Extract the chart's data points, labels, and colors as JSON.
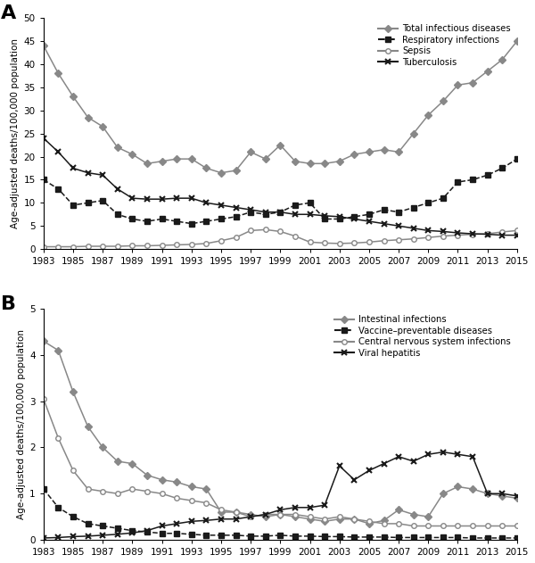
{
  "years": [
    1983,
    1984,
    1985,
    1986,
    1987,
    1988,
    1989,
    1990,
    1991,
    1992,
    1993,
    1994,
    1995,
    1996,
    1997,
    1998,
    1999,
    2000,
    2001,
    2002,
    2003,
    2004,
    2005,
    2006,
    2007,
    2008,
    2009,
    2010,
    2011,
    2012,
    2013,
    2014,
    2015
  ],
  "panelA": {
    "total": [
      44,
      38,
      33,
      28.5,
      26.5,
      22,
      20.5,
      18.5,
      19,
      19.5,
      19.5,
      17.5,
      16.5,
      17,
      21,
      19.5,
      22.5,
      19,
      18.5,
      18.5,
      19,
      20.5,
      21,
      21.5,
      21,
      25,
      29,
      32,
      35.5,
      36,
      38.5,
      41,
      45
    ],
    "respiratory": [
      15,
      13,
      9.5,
      10,
      10.5,
      7.5,
      6.5,
      6,
      6.5,
      6,
      5.5,
      6,
      6.5,
      7,
      8,
      7.5,
      8,
      9.5,
      10,
      6.5,
      6.5,
      7,
      7.5,
      8.5,
      8,
      9,
      10,
      11,
      14.5,
      15,
      16,
      17.5,
      19.5
    ],
    "sepsis": [
      0.5,
      0.5,
      0.5,
      0.6,
      0.6,
      0.6,
      0.7,
      0.7,
      0.8,
      0.9,
      1.0,
      1.2,
      1.8,
      2.5,
      4.0,
      4.2,
      3.8,
      2.8,
      1.5,
      1.3,
      1.2,
      1.3,
      1.5,
      1.8,
      2.0,
      2.2,
      2.5,
      2.8,
      3.0,
      3.2,
      3.3,
      3.7,
      4.0
    ],
    "tuberculosis": [
      24,
      21,
      17.5,
      16.5,
      16,
      13,
      11,
      10.8,
      10.8,
      11,
      11,
      10,
      9.5,
      9,
      8.5,
      8,
      8,
      7.5,
      7.5,
      7.2,
      7,
      6.5,
      6,
      5.5,
      5,
      4.5,
      4,
      3.8,
      3.5,
      3.3,
      3.2,
      3.0,
      3.0
    ]
  },
  "panelB": {
    "intestinal": [
      4.3,
      4.1,
      3.2,
      2.45,
      2.0,
      1.7,
      1.65,
      1.4,
      1.3,
      1.25,
      1.15,
      1.1,
      0.6,
      0.6,
      0.55,
      0.5,
      0.55,
      0.5,
      0.45,
      0.4,
      0.45,
      0.45,
      0.35,
      0.42,
      0.65,
      0.55,
      0.5,
      1.0,
      1.15,
      1.1,
      1.0,
      0.95,
      0.9
    ],
    "vaccine": [
      1.1,
      0.7,
      0.5,
      0.35,
      0.3,
      0.25,
      0.2,
      0.17,
      0.14,
      0.14,
      0.12,
      0.1,
      0.1,
      0.1,
      0.08,
      0.08,
      0.1,
      0.08,
      0.08,
      0.07,
      0.07,
      0.06,
      0.06,
      0.06,
      0.05,
      0.05,
      0.05,
      0.05,
      0.05,
      0.04,
      0.04,
      0.04,
      0.04
    ],
    "cns": [
      3.05,
      2.2,
      1.5,
      1.1,
      1.05,
      1.0,
      1.1,
      1.05,
      1.0,
      0.9,
      0.85,
      0.8,
      0.65,
      0.6,
      0.5,
      0.55,
      0.55,
      0.55,
      0.5,
      0.45,
      0.5,
      0.45,
      0.4,
      0.35,
      0.35,
      0.3,
      0.3,
      0.3,
      0.3,
      0.3,
      0.3,
      0.3,
      0.3
    ],
    "hepatitis": [
      0.04,
      0.05,
      0.07,
      0.08,
      0.1,
      0.12,
      0.15,
      0.2,
      0.3,
      0.35,
      0.4,
      0.42,
      0.45,
      0.45,
      0.5,
      0.55,
      0.65,
      0.7,
      0.7,
      0.75,
      1.6,
      1.3,
      1.5,
      1.65,
      1.8,
      1.7,
      1.85,
      1.9,
      1.85,
      1.8,
      1.0,
      1.0,
      0.95
    ]
  },
  "gray": "#888888",
  "black": "#1a1a1a",
  "panelA_ylabel": "Age-adjusted deaths/100,000 population",
  "panelB_ylabel": "Age-adjusted deaths/100,000 population",
  "panelA_ylim": [
    0,
    50
  ],
  "panelB_ylim": [
    0,
    5
  ],
  "panelA_yticks": [
    0,
    5,
    10,
    15,
    20,
    25,
    30,
    35,
    40,
    45,
    50
  ],
  "panelB_yticks": [
    0,
    1,
    2,
    3,
    4,
    5
  ],
  "xticks": [
    1983,
    1985,
    1987,
    1989,
    1991,
    1993,
    1995,
    1997,
    1999,
    2001,
    2003,
    2005,
    2007,
    2009,
    2011,
    2013,
    2015
  ],
  "panelA_legends": [
    "Total infectious diseases",
    "Respiratory infections",
    "Sepsis",
    "Tuberculosis"
  ],
  "panelB_legends": [
    "Intestinal infections",
    "Vaccine–preventable diseases",
    "Central nervous system infections",
    "Viral hepatitis"
  ]
}
